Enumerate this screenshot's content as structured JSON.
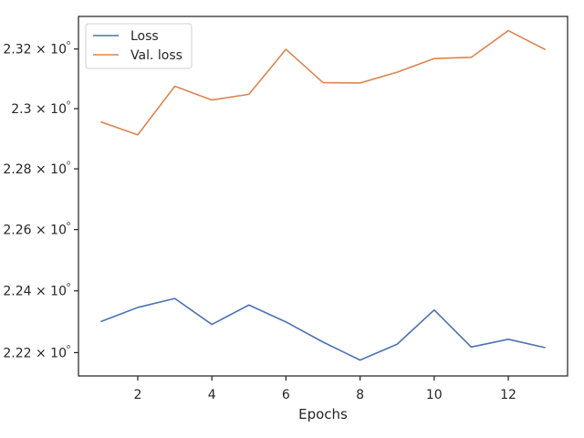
{
  "chart_data": {
    "type": "line",
    "title": "",
    "xlabel": "Epochs",
    "ylabel": "",
    "yscale": "log",
    "x": [
      1,
      2,
      3,
      4,
      5,
      6,
      7,
      8,
      9,
      10,
      11,
      12,
      13
    ],
    "xlim": [
      0.4,
      13.6
    ],
    "ylim": [
      2.2125,
      2.331
    ],
    "x_ticks": [
      2,
      4,
      6,
      8,
      10,
      12
    ],
    "y_ticks": [
      2.22,
      2.24,
      2.26,
      2.28,
      2.3,
      2.32
    ],
    "y_tick_labels": [
      "2.22 × 10⁰",
      "2.24 × 10⁰",
      "2.26 × 10⁰",
      "2.28 × 10⁰",
      "2.3 × 10⁰",
      "2.32 × 10⁰"
    ],
    "grid": false,
    "legend_position": "top-left",
    "series": [
      {
        "name": "Loss",
        "color": "#4c72b0",
        "values": [
          2.23,
          2.2346,
          2.2375,
          2.2291,
          2.2354,
          2.2299,
          2.2234,
          2.2176,
          2.2227,
          2.2338,
          2.2218,
          2.2243,
          2.2216
        ]
      },
      {
        "name": "Val. loss",
        "color": "#dd8452",
        "values": [
          2.2956,
          2.2913,
          2.3075,
          2.3029,
          2.3048,
          2.3199,
          2.3087,
          2.3086,
          2.3122,
          2.3168,
          2.3172,
          2.3262,
          2.3198
        ]
      }
    ]
  }
}
